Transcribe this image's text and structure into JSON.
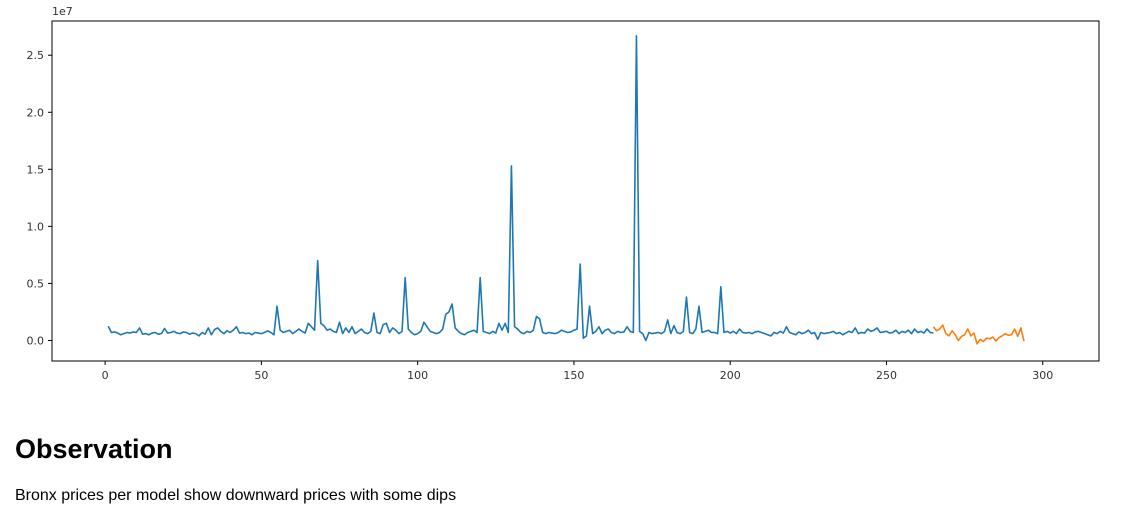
{
  "chart_data": {
    "type": "line",
    "title": "",
    "xlabel": "",
    "ylabel": "",
    "y_offset_label": "1e7",
    "xlim": [
      -17,
      318
    ],
    "ylim": [
      -1800000,
      28000000
    ],
    "grid": false,
    "xticks": [
      0,
      50,
      100,
      150,
      200,
      250,
      300
    ],
    "xtick_labels": [
      "0",
      "50",
      "100",
      "150",
      "200",
      "250",
      "300"
    ],
    "yticks": [
      0,
      5000000,
      10000000,
      15000000,
      20000000,
      25000000
    ],
    "ytick_labels": [
      "0.0",
      "0.5",
      "1.0",
      "1.5",
      "2.0",
      "2.5"
    ],
    "series": [
      {
        "color": "#1f77b4",
        "x_start": 1,
        "values": [
          1250000,
          700000,
          750000,
          650000,
          500000,
          600000,
          700000,
          650000,
          750000,
          700000,
          1100000,
          550000,
          600000,
          500000,
          650000,
          700000,
          550000,
          600000,
          1050000,
          650000,
          700000,
          800000,
          650000,
          600000,
          750000,
          700000,
          550000,
          650000,
          600000,
          400000,
          700000,
          550000,
          1100000,
          500000,
          950000,
          1100000,
          800000,
          600000,
          850000,
          700000,
          900000,
          1200000,
          650000,
          700000,
          600000,
          650000,
          500000,
          700000,
          650000,
          600000,
          700000,
          850000,
          700000,
          500000,
          3000000,
          900000,
          700000,
          800000,
          900000,
          600000,
          800000,
          1000000,
          800000,
          650000,
          1500000,
          1200000,
          900000,
          7000000,
          1500000,
          1300000,
          900000,
          1000000,
          800000,
          700000,
          1600000,
          600000,
          1100000,
          700000,
          1200000,
          600000,
          800000,
          1000000,
          700000,
          600000,
          800000,
          2400000,
          700000,
          600000,
          1400000,
          1500000,
          700000,
          1100000,
          900000,
          600000,
          800000,
          5500000,
          1000000,
          700000,
          500000,
          600000,
          800000,
          1600000,
          1200000,
          800000,
          700000,
          600000,
          700000,
          1000000,
          2300000,
          2500000,
          3200000,
          1100000,
          800000,
          600000,
          500000,
          700000,
          800000,
          900000,
          700000,
          5500000,
          800000,
          700000,
          600000,
          800000,
          650000,
          1500000,
          900000,
          1500000,
          700000,
          15300000,
          1200000,
          1000000,
          700000,
          600000,
          800000,
          700000,
          900000,
          2100000,
          1900000,
          700000,
          600000,
          700000,
          650000,
          600000,
          700000,
          900000,
          800000,
          700000,
          750000,
          900000,
          1000000,
          6700000,
          200000,
          400000,
          3000000,
          600000,
          800000,
          1200000,
          600000,
          900000,
          1000000,
          700000,
          600000,
          800000,
          700000,
          750000,
          1200000,
          800000,
          700000,
          26700000,
          800000,
          600000,
          0,
          700000,
          600000,
          650000,
          700000,
          600000,
          800000,
          1800000,
          600000,
          1300000,
          700000,
          600000,
          800000,
          3800000,
          700000,
          600000,
          1000000,
          3000000,
          700000,
          800000,
          900000,
          700000,
          700000,
          600000,
          4700000,
          700000,
          800000,
          650000,
          800000,
          600000,
          1000000,
          700000,
          650000,
          700000,
          600000,
          750000,
          800000,
          700000,
          600000,
          500000,
          400000,
          700000,
          600000,
          800000,
          650000,
          1200000,
          700000,
          600000,
          500000,
          750000,
          600000,
          700000,
          900000,
          600000,
          700000,
          100000,
          700000,
          600000,
          650000,
          700000,
          800000,
          600000,
          700000,
          500000,
          650000,
          800000,
          700000,
          1100000,
          600000,
          700000,
          650000,
          1000000,
          800000,
          900000,
          1100000,
          700000,
          750000,
          800000,
          650000,
          700000,
          900000,
          600000,
          800000,
          700000,
          900000,
          600000,
          1000000,
          700000,
          800000,
          650000,
          1000000,
          700000,
          650000
        ]
      },
      {
        "color": "#ff7f0e",
        "x_start": 265,
        "values": [
          1200000,
          850000,
          1000000,
          1350000,
          600000,
          400000,
          850000,
          500000,
          0,
          350000,
          500000,
          1000000,
          400000,
          650000,
          -300000,
          100000,
          -100000,
          200000,
          150000,
          300000,
          -50000,
          250000,
          400000,
          600000,
          450000,
          500000,
          1000000,
          350000,
          1100000,
          -50000
        ]
      }
    ]
  },
  "observation": {
    "heading": "Observation",
    "text": "Bronx prices per model show downward prices with some dips"
  }
}
